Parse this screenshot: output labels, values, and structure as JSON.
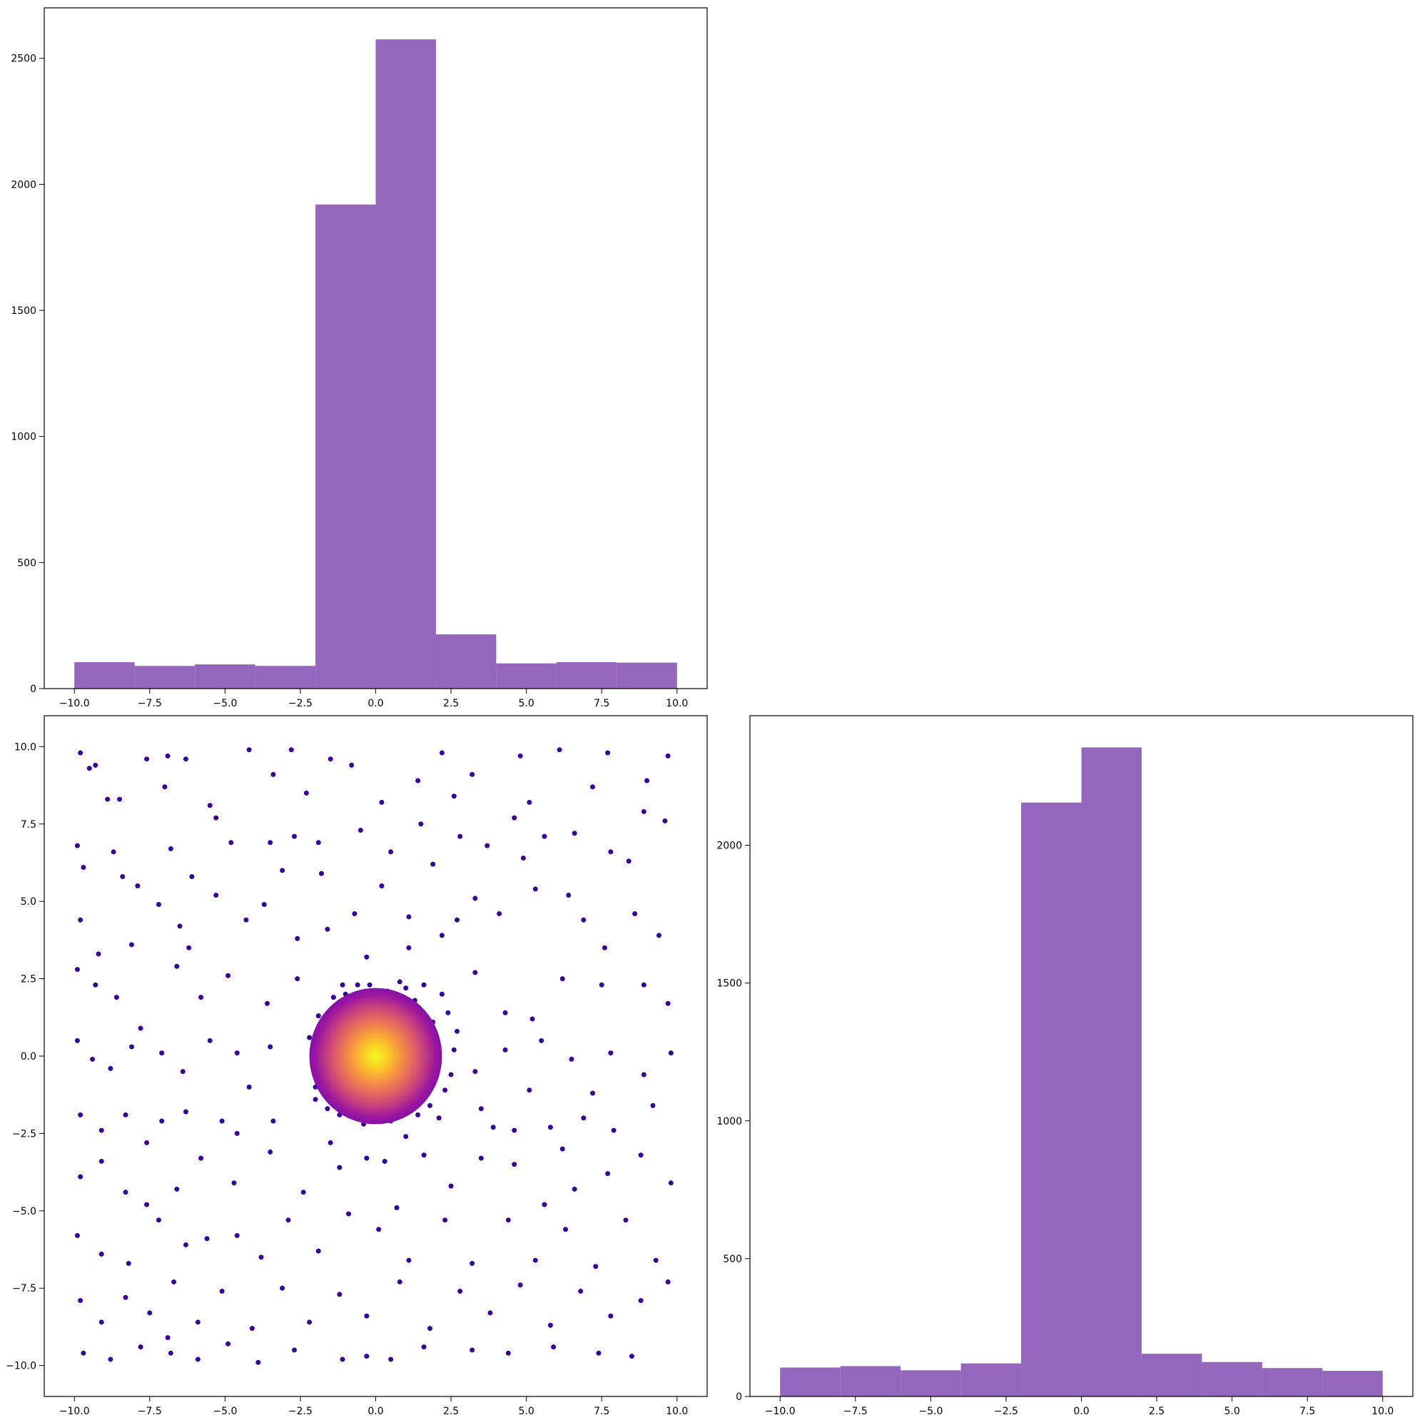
{
  "chart_data": [
    {
      "id": "hist-x",
      "type": "bar",
      "position": "top-left",
      "bin_edges": [
        -10,
        -8,
        -6,
        -4,
        -2,
        0,
        2,
        4,
        6,
        8,
        10
      ],
      "values": [
        105,
        90,
        96,
        90,
        1920,
        2575,
        215,
        100,
        105,
        103
      ],
      "color": "#9467bd",
      "xlim": [
        -11,
        11
      ],
      "ylim": [
        0,
        2700
      ],
      "xticks": [
        "−10.0",
        "−7.5",
        "−5.0",
        "−2.5",
        "0.0",
        "2.5",
        "5.0",
        "7.5",
        "10.0"
      ],
      "yticks": [
        "0",
        "500",
        "1000",
        "1500",
        "2000",
        "2500"
      ],
      "xtick_values": [
        -10,
        -7.5,
        -5,
        -2.5,
        0,
        2.5,
        5,
        7.5,
        10
      ],
      "ytick_values": [
        0,
        500,
        1000,
        1500,
        2000,
        2500
      ],
      "grid": false
    },
    {
      "id": "scatter-xy",
      "type": "scatter",
      "position": "bottom-left",
      "xlim": [
        -11,
        11
      ],
      "ylim": [
        -11,
        11
      ],
      "xticks": [
        "−10.0",
        "−7.5",
        "−5.0",
        "−2.5",
        "0.0",
        "2.5",
        "5.0",
        "7.5",
        "10.0"
      ],
      "yticks": [
        "−10.0",
        "−7.5",
        "−5.0",
        "−2.5",
        "0.0",
        "2.5",
        "5.0",
        "7.5",
        "10.0"
      ],
      "xtick_values": [
        -10,
        -7.5,
        -5,
        -2.5,
        0,
        2.5,
        5,
        7.5,
        10
      ],
      "ytick_values": [
        -10,
        -7.5,
        -5,
        -2.5,
        0,
        2.5,
        5,
        7.5,
        10
      ],
      "colormap": "plasma",
      "points": [
        [
          -9.8,
          9.8
        ],
        [
          -9.5,
          9.3
        ],
        [
          -9.3,
          9.4
        ],
        [
          -8.9,
          8.3
        ],
        [
          -8.5,
          8.3
        ],
        [
          -7.6,
          9.6
        ],
        [
          -6.9,
          9.7
        ],
        [
          -6.3,
          9.6
        ],
        [
          -4.2,
          9.9
        ],
        [
          -3.4,
          9.1
        ],
        [
          -2.8,
          9.9
        ],
        [
          -1.5,
          9.6
        ],
        [
          -0.8,
          9.4
        ],
        [
          1.4,
          8.9
        ],
        [
          2.2,
          9.8
        ],
        [
          3.2,
          9.1
        ],
        [
          4.8,
          9.7
        ],
        [
          6.1,
          9.9
        ],
        [
          7.7,
          9.8
        ],
        [
          9.7,
          9.7
        ],
        [
          -9.9,
          6.8
        ],
        [
          -9.7,
          6.1
        ],
        [
          -8.4,
          5.8
        ],
        [
          -7.9,
          5.5
        ],
        [
          -6.8,
          6.7
        ],
        [
          -6.1,
          5.8
        ],
        [
          -5.3,
          7.7
        ],
        [
          -4.8,
          6.9
        ],
        [
          -3.5,
          6.9
        ],
        [
          -2.7,
          7.1
        ],
        [
          -1.9,
          6.9
        ],
        [
          -0.5,
          7.3
        ],
        [
          0.5,
          6.6
        ],
        [
          1.5,
          7.5
        ],
        [
          2.8,
          7.1
        ],
        [
          3.7,
          6.8
        ],
        [
          4.6,
          7.7
        ],
        [
          5.6,
          7.1
        ],
        [
          6.6,
          7.2
        ],
        [
          7.8,
          6.6
        ],
        [
          8.9,
          7.9
        ],
        [
          9.6,
          7.6
        ],
        [
          -9.8,
          4.4
        ],
        [
          -9.2,
          3.3
        ],
        [
          -8.1,
          3.6
        ],
        [
          -7.2,
          4.9
        ],
        [
          -6.5,
          4.2
        ],
        [
          -5.3,
          5.2
        ],
        [
          -4.3,
          4.4
        ],
        [
          -3.7,
          4.9
        ],
        [
          -2.6,
          3.8
        ],
        [
          -1.8,
          5.9
        ],
        [
          -0.7,
          4.6
        ],
        [
          0.2,
          5.5
        ],
        [
          1.1,
          4.5
        ],
        [
          2.2,
          3.9
        ],
        [
          3.3,
          5.1
        ],
        [
          4.1,
          4.6
        ],
        [
          5.3,
          5.4
        ],
        [
          6.4,
          5.2
        ],
        [
          7.6,
          3.5
        ],
        [
          8.6,
          4.6
        ],
        [
          9.4,
          3.9
        ],
        [
          -9.9,
          2.8
        ],
        [
          -9.3,
          2.3
        ],
        [
          -8.6,
          1.9
        ],
        [
          -7.8,
          0.9
        ],
        [
          -6.6,
          2.9
        ],
        [
          -5.8,
          1.9
        ],
        [
          -4.9,
          2.6
        ],
        [
          -3.6,
          1.7
        ],
        [
          -2.6,
          2.5
        ],
        [
          -1.1,
          2.3
        ],
        [
          -0.3,
          3.2
        ],
        [
          1.1,
          3.5
        ],
        [
          3.3,
          2.7
        ],
        [
          4.3,
          1.4
        ],
        [
          5.2,
          1.2
        ],
        [
          6.2,
          2.5
        ],
        [
          7.5,
          2.3
        ],
        [
          8.9,
          2.3
        ],
        [
          9.7,
          1.7
        ],
        [
          -9.9,
          0.5
        ],
        [
          -9.4,
          -0.1
        ],
        [
          -8.8,
          -0.4
        ],
        [
          -8.1,
          0.3
        ],
        [
          -7.1,
          0.1
        ],
        [
          -6.4,
          -0.5
        ],
        [
          -5.5,
          0.5
        ],
        [
          -4.6,
          0.1
        ],
        [
          -3.5,
          0.3
        ],
        [
          3.3,
          -0.5
        ],
        [
          4.3,
          0.2
        ],
        [
          5.5,
          0.5
        ],
        [
          6.5,
          -0.1
        ],
        [
          7.8,
          0.1
        ],
        [
          8.9,
          -0.6
        ],
        [
          9.8,
          0.1
        ],
        [
          -9.8,
          -1.9
        ],
        [
          -9.1,
          -2.4
        ],
        [
          -8.3,
          -1.9
        ],
        [
          -7.1,
          -2.1
        ],
        [
          -6.3,
          -1.8
        ],
        [
          -5.1,
          -2.1
        ],
        [
          -4.6,
          -2.5
        ],
        [
          -3.4,
          -2.1
        ],
        [
          3.5,
          -1.7
        ],
        [
          4.6,
          -2.4
        ],
        [
          5.8,
          -2.3
        ],
        [
          6.9,
          -2.0
        ],
        [
          7.9,
          -2.4
        ],
        [
          9.2,
          -1.6
        ],
        [
          -9.8,
          -3.9
        ],
        [
          -9.1,
          -3.4
        ],
        [
          -8.3,
          -4.4
        ],
        [
          -7.6,
          -4.8
        ],
        [
          -6.6,
          -4.3
        ],
        [
          -5.8,
          -3.3
        ],
        [
          -4.7,
          -4.1
        ],
        [
          -3.5,
          -3.1
        ],
        [
          -2.4,
          -4.4
        ],
        [
          -1.2,
          -3.6
        ],
        [
          -0.3,
          -3.3
        ],
        [
          0.7,
          -4.9
        ],
        [
          1.6,
          -3.2
        ],
        [
          2.5,
          -4.2
        ],
        [
          3.5,
          -3.3
        ],
        [
          4.6,
          -3.5
        ],
        [
          5.6,
          -4.8
        ],
        [
          6.6,
          -4.3
        ],
        [
          7.7,
          -3.8
        ],
        [
          8.8,
          -3.2
        ],
        [
          9.8,
          -4.1
        ],
        [
          -9.9,
          -5.8
        ],
        [
          -9.1,
          -6.4
        ],
        [
          -8.2,
          -6.7
        ],
        [
          -7.2,
          -5.3
        ],
        [
          -6.3,
          -6.1
        ],
        [
          -5.6,
          -5.9
        ],
        [
          -4.6,
          -5.8
        ],
        [
          -3.8,
          -6.5
        ],
        [
          -2.9,
          -5.3
        ],
        [
          -1.9,
          -6.3
        ],
        [
          -0.9,
          -5.1
        ],
        [
          0.1,
          -5.6
        ],
        [
          1.1,
          -6.6
        ],
        [
          2.3,
          -5.3
        ],
        [
          3.2,
          -6.7
        ],
        [
          4.4,
          -5.3
        ],
        [
          5.3,
          -6.6
        ],
        [
          6.3,
          -5.6
        ],
        [
          7.3,
          -6.8
        ],
        [
          8.3,
          -5.3
        ],
        [
          9.3,
          -6.6
        ],
        [
          -9.8,
          -7.9
        ],
        [
          -9.1,
          -8.6
        ],
        [
          -8.3,
          -7.8
        ],
        [
          -7.5,
          -8.3
        ],
        [
          -6.7,
          -7.3
        ],
        [
          -5.9,
          -8.6
        ],
        [
          -5.1,
          -7.6
        ],
        [
          -4.1,
          -8.8
        ],
        [
          -3.1,
          -7.5
        ],
        [
          -2.2,
          -8.6
        ],
        [
          -1.2,
          -7.7
        ],
        [
          -0.3,
          -8.4
        ],
        [
          0.8,
          -7.3
        ],
        [
          1.8,
          -8.8
        ],
        [
          2.8,
          -7.6
        ],
        [
          3.8,
          -8.3
        ],
        [
          4.8,
          -7.4
        ],
        [
          5.8,
          -8.7
        ],
        [
          6.8,
          -7.6
        ],
        [
          7.8,
          -8.4
        ],
        [
          8.8,
          -7.9
        ],
        [
          9.7,
          -7.3
        ],
        [
          -9.7,
          -9.6
        ],
        [
          -8.8,
          -9.8
        ],
        [
          -7.8,
          -9.4
        ],
        [
          -6.8,
          -9.6
        ],
        [
          -5.9,
          -9.8
        ],
        [
          -4.9,
          -9.3
        ],
        [
          -3.9,
          -9.9
        ],
        [
          -2.7,
          -9.5
        ],
        [
          -1.1,
          -9.8
        ],
        [
          -0.3,
          -9.7
        ],
        [
          0.5,
          -9.8
        ],
        [
          1.6,
          -9.4
        ],
        [
          3.2,
          -9.5
        ],
        [
          4.4,
          -9.6
        ],
        [
          5.9,
          -9.4
        ],
        [
          7.4,
          -9.6
        ],
        [
          8.5,
          -9.7
        ],
        [
          -7.0,
          8.7
        ],
        [
          -5.5,
          8.1
        ],
        [
          -2.3,
          8.5
        ],
        [
          0.2,
          8.2
        ],
        [
          2.6,
          8.4
        ],
        [
          5.1,
          8.2
        ],
        [
          7.2,
          8.7
        ],
        [
          9.0,
          8.9
        ],
        [
          -8.7,
          6.6
        ],
        [
          -3.1,
          6.0
        ],
        [
          1.9,
          6.2
        ],
        [
          4.9,
          6.4
        ],
        [
          8.4,
          6.3
        ],
        [
          -6.2,
          3.5
        ],
        [
          -1.6,
          4.1
        ],
        [
          2.7,
          4.4
        ],
        [
          6.9,
          4.4
        ],
        [
          -4.2,
          -1.0
        ],
        [
          -2.0,
          -1.4
        ],
        [
          2.1,
          -2.0
        ],
        [
          5.1,
          -1.1
        ],
        [
          7.2,
          -1.2
        ],
        [
          -7.6,
          -2.8
        ],
        [
          -1.5,
          -2.8
        ],
        [
          1.0,
          -2.6
        ],
        [
          6.2,
          -3.0
        ],
        [
          -6.9,
          -9.1
        ],
        [
          0.3,
          -3.4
        ],
        [
          3.9,
          -2.3
        ],
        [
          -1.3,
          1.6
        ],
        [
          -0.6,
          1.9
        ],
        [
          0.4,
          2.1
        ],
        [
          1.3,
          1.8
        ],
        [
          1.9,
          1.1
        ],
        [
          2.1,
          0.3
        ],
        [
          2.0,
          -0.6
        ],
        [
          1.6,
          -1.3
        ],
        [
          0.9,
          -1.8
        ],
        [
          0.0,
          -2.0
        ],
        [
          -0.9,
          -1.8
        ],
        [
          -1.5,
          -1.3
        ],
        [
          -1.9,
          -0.6
        ],
        [
          -2.0,
          0.2
        ],
        [
          -1.8,
          1.0
        ],
        [
          -0.2,
          2.3
        ],
        [
          1.0,
          2.2
        ],
        [
          2.4,
          1.4
        ],
        [
          2.6,
          0.2
        ],
        [
          2.3,
          -1.1
        ],
        [
          1.4,
          -1.9
        ],
        [
          -0.4,
          -2.2
        ],
        [
          -1.6,
          -1.7
        ],
        [
          -2.1,
          -0.3
        ],
        [
          -1.9,
          1.3
        ],
        [
          -1.0,
          2.0
        ],
        [
          0.8,
          2.4
        ],
        [
          2.2,
          2.0
        ],
        [
          2.7,
          0.8
        ],
        [
          2.5,
          -0.6
        ],
        [
          1.8,
          -1.6
        ],
        [
          0.5,
          -2.1
        ],
        [
          -1.2,
          -1.9
        ],
        [
          -2.0,
          -1.0
        ],
        [
          -2.2,
          0.6
        ],
        [
          -1.4,
          1.9
        ],
        [
          -0.6,
          2.3
        ],
        [
          1.6,
          2.3
        ]
      ],
      "density_blob": {
        "center": [
          0,
          0
        ],
        "radius": 2.2
      },
      "grid": false
    },
    {
      "id": "hist-y",
      "type": "bar",
      "position": "bottom-right",
      "bin_edges": [
        -10,
        -8,
        -6,
        -4,
        -2,
        0,
        2,
        4,
        6,
        8,
        10
      ],
      "values": [
        105,
        110,
        95,
        120,
        2155,
        2355,
        155,
        125,
        103,
        93
      ],
      "color": "#9467bd",
      "xlim": [
        -11,
        11
      ],
      "ylim": [
        0,
        2470
      ],
      "xticks": [
        "−10.0",
        "−7.5",
        "−5.0",
        "−2.5",
        "0.0",
        "2.5",
        "5.0",
        "7.5",
        "10.0"
      ],
      "yticks": [
        "0",
        "500",
        "1000",
        "1500",
        "2000"
      ],
      "xtick_values": [
        -10,
        -7.5,
        -5,
        -2.5,
        0,
        2.5,
        5,
        7.5,
        10
      ],
      "ytick_values": [
        0,
        500,
        1000,
        1500,
        2000
      ],
      "grid": false
    }
  ]
}
